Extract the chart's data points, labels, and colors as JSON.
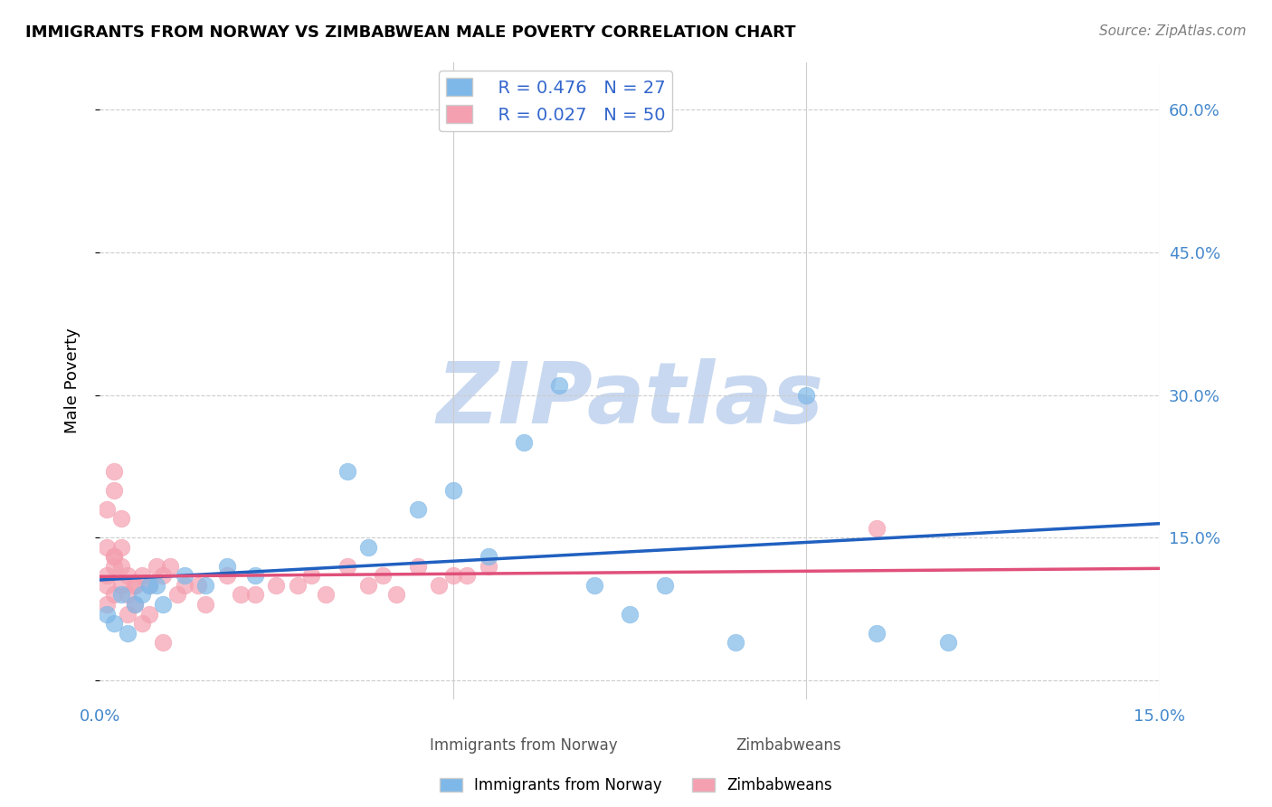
{
  "title": "IMMIGRANTS FROM NORWAY VS ZIMBABWEAN MALE POVERTY CORRELATION CHART",
  "source": "Source: ZipAtlas.com",
  "xlabel_bottom": "",
  "ylabel": "Male Poverty",
  "x_min": 0.0,
  "x_max": 0.15,
  "y_min": -0.02,
  "y_max": 0.65,
  "y_ticks": [
    0.0,
    0.15,
    0.3,
    0.45,
    0.6
  ],
  "y_tick_labels": [
    "",
    "15.0%",
    "30.0%",
    "45.0%",
    "60.0%"
  ],
  "x_ticks": [
    0.0,
    0.05,
    0.1,
    0.15
  ],
  "x_tick_labels": [
    "0.0%",
    "",
    "",
    "15.0%"
  ],
  "legend_r1": "R = 0.476",
  "legend_n1": "N = 27",
  "legend_r2": "R = 0.027",
  "legend_n2": "N = 50",
  "series1_color": "#7eb8e8",
  "series2_color": "#f4a0b0",
  "trend1_color": "#2060c0",
  "trend2_color": "#e0507a",
  "watermark": "ZIPatlas",
  "watermark_color": "#c8d8f0",
  "legend1_label": "Immigrants from Norway",
  "legend2_label": "Zimbabweans",
  "norway_x": [
    0.005,
    0.008,
    0.003,
    0.012,
    0.007,
    0.002,
    0.009,
    0.015,
    0.004,
    0.006,
    0.001,
    0.018,
    0.022,
    0.035,
    0.05,
    0.045,
    0.038,
    0.06,
    0.055,
    0.07,
    0.08,
    0.075,
    0.09,
    0.1,
    0.11,
    0.12,
    0.065
  ],
  "norway_y": [
    0.08,
    0.1,
    0.09,
    0.11,
    0.1,
    0.06,
    0.08,
    0.1,
    0.05,
    0.09,
    0.07,
    0.12,
    0.11,
    0.22,
    0.2,
    0.18,
    0.14,
    0.25,
    0.13,
    0.1,
    0.1,
    0.07,
    0.04,
    0.3,
    0.05,
    0.04,
    0.31
  ],
  "zimbabwe_x": [
    0.001,
    0.002,
    0.001,
    0.003,
    0.002,
    0.004,
    0.001,
    0.005,
    0.003,
    0.002,
    0.001,
    0.003,
    0.002,
    0.004,
    0.006,
    0.005,
    0.008,
    0.007,
    0.01,
    0.009,
    0.012,
    0.011,
    0.015,
    0.014,
    0.02,
    0.018,
    0.025,
    0.022,
    0.03,
    0.028,
    0.035,
    0.032,
    0.04,
    0.038,
    0.045,
    0.042,
    0.05,
    0.048,
    0.055,
    0.052,
    0.001,
    0.002,
    0.003,
    0.004,
    0.005,
    0.006,
    0.007,
    0.009,
    0.11,
    0.002
  ],
  "zimbabwe_y": [
    0.14,
    0.13,
    0.1,
    0.12,
    0.09,
    0.11,
    0.08,
    0.1,
    0.14,
    0.12,
    0.11,
    0.1,
    0.13,
    0.09,
    0.11,
    0.1,
    0.12,
    0.1,
    0.12,
    0.11,
    0.1,
    0.09,
    0.08,
    0.1,
    0.09,
    0.11,
    0.1,
    0.09,
    0.11,
    0.1,
    0.12,
    0.09,
    0.11,
    0.1,
    0.12,
    0.09,
    0.11,
    0.1,
    0.12,
    0.11,
    0.18,
    0.2,
    0.17,
    0.07,
    0.08,
    0.06,
    0.07,
    0.04,
    0.16,
    0.22
  ],
  "background_color": "#ffffff",
  "grid_color": "#cccccc"
}
